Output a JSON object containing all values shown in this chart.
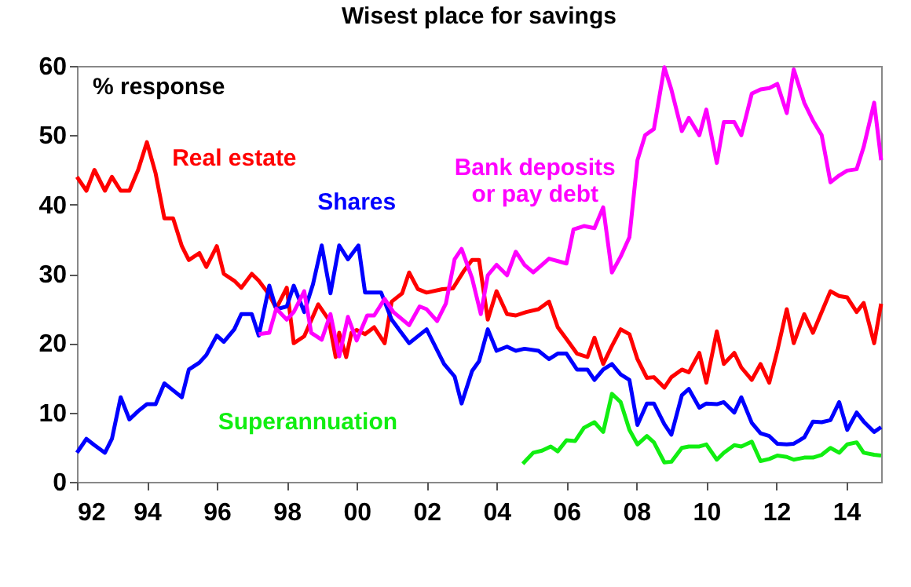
{
  "chart_data": {
    "type": "line",
    "title": "Wisest place for savings",
    "ylabel": "% response",
    "xlim": [
      1992,
      2015
    ],
    "xticks": [
      {
        "value": 1992,
        "label": "92"
      },
      {
        "value": 1994,
        "label": "94"
      },
      {
        "value": 1996,
        "label": "96"
      },
      {
        "value": 1998,
        "label": "98"
      },
      {
        "value": 2000,
        "label": "00"
      },
      {
        "value": 2002,
        "label": "02"
      },
      {
        "value": 2004,
        "label": "04"
      },
      {
        "value": 2006,
        "label": "06"
      },
      {
        "value": 2008,
        "label": "08"
      },
      {
        "value": 2010,
        "label": "10"
      },
      {
        "value": 2012,
        "label": "12"
      },
      {
        "value": 2014,
        "label": "14"
      }
    ],
    "ylim": [
      0,
      60
    ],
    "yticks": [
      0,
      10,
      20,
      30,
      40,
      50,
      60
    ],
    "grid": false,
    "legend": false,
    "series": [
      {
        "name": "Real estate",
        "color": "#ff0000",
        "x": [
          1992.0,
          1992.27,
          1992.5,
          1992.8,
          1993.0,
          1993.25,
          1993.5,
          1993.75,
          1994.0,
          1994.25,
          1994.5,
          1994.75,
          1995.0,
          1995.2,
          1995.5,
          1995.7,
          1996.0,
          1996.2,
          1996.5,
          1996.7,
          1997.0,
          1997.2,
          1997.5,
          1997.7,
          1998.0,
          1998.2,
          1998.5,
          1998.9,
          1999.2,
          1999.4,
          1999.5,
          1999.7,
          1999.85,
          2000.0,
          2000.24,
          2000.5,
          2000.8,
          2001.0,
          2001.3,
          2001.5,
          2001.75,
          2002.0,
          2002.45,
          2002.75,
          2003.05,
          2003.3,
          2003.5,
          2003.75,
          2004.0,
          2004.3,
          2004.55,
          2004.85,
          2005.2,
          2005.5,
          2005.75,
          2006.0,
          2006.3,
          2006.6,
          2006.8,
          2007.05,
          2007.3,
          2007.55,
          2007.8,
          2008.03,
          2008.3,
          2008.5,
          2008.8,
          2009.0,
          2009.3,
          2009.5,
          2009.8,
          2010.0,
          2010.3,
          2010.5,
          2010.8,
          2011.0,
          2011.3,
          2011.55,
          2011.8,
          2012.03,
          2012.3,
          2012.5,
          2012.8,
          2013.05,
          2013.3,
          2013.55,
          2013.8,
          2014.03,
          2014.3,
          2014.5,
          2014.8,
          2015.0
        ],
        "values": [
          44,
          42,
          45,
          42,
          44,
          42,
          42,
          45,
          49,
          44.5,
          38,
          38,
          34,
          32,
          33,
          31,
          34,
          30,
          29,
          28,
          30,
          29,
          27,
          25,
          28,
          20,
          21,
          25.6,
          23.4,
          18,
          21.5,
          18,
          21.5,
          21.9,
          21.3,
          22.3,
          20,
          26,
          27.2,
          30.2,
          27.8,
          27.3,
          27.8,
          27.9,
          30.3,
          32,
          32,
          23.4,
          27.5,
          24.2,
          24,
          24.5,
          24.9,
          26,
          22.3,
          20.6,
          18.5,
          18,
          20.8,
          17,
          19.6,
          22,
          21.3,
          17.7,
          15,
          15.1,
          13.6,
          15.1,
          16.2,
          15.8,
          18.6,
          14.3,
          21.7,
          17,
          18.6,
          16.5,
          14.7,
          17,
          14.3,
          18.9,
          24.9,
          20,
          24.2,
          21.5,
          24.5,
          27.5,
          26.8,
          26.6,
          24.5,
          25.8,
          20,
          25.7
        ]
      },
      {
        "name": "Shares",
        "color": "#0000ff",
        "x": [
          1992.0,
          1992.27,
          1992.5,
          1992.8,
          1993.0,
          1993.25,
          1993.5,
          1993.75,
          1994.0,
          1994.25,
          1994.5,
          1994.75,
          1995.0,
          1995.2,
          1995.5,
          1995.7,
          1996.0,
          1996.2,
          1996.5,
          1996.7,
          1997.0,
          1997.2,
          1997.5,
          1997.7,
          1998.0,
          1998.2,
          1998.5,
          1998.75,
          1999.0,
          1999.25,
          1999.5,
          1999.75,
          2000.05,
          2000.24,
          2000.7,
          2001.0,
          2001.5,
          2002.0,
          2002.5,
          2002.8,
          2003.0,
          2003.3,
          2003.5,
          2003.75,
          2004.0,
          2004.3,
          2004.55,
          2004.8,
          2005.2,
          2005.5,
          2005.75,
          2006.0,
          2006.3,
          2006.6,
          2006.8,
          2007.05,
          2007.3,
          2007.55,
          2007.8,
          2008.03,
          2008.3,
          2008.5,
          2008.8,
          2009.0,
          2009.3,
          2009.5,
          2009.8,
          2010.0,
          2010.3,
          2010.5,
          2010.8,
          2011.0,
          2011.3,
          2011.55,
          2011.8,
          2012.03,
          2012.3,
          2012.5,
          2012.8,
          2013.05,
          2013.3,
          2013.55,
          2013.8,
          2014.03,
          2014.3,
          2014.5,
          2014.8,
          2015.0
        ],
        "values": [
          4.2,
          6.2,
          5.3,
          4.2,
          6.2,
          12.2,
          9,
          10.2,
          11.2,
          11.2,
          14.2,
          13.2,
          12.2,
          16.2,
          17.2,
          18.3,
          21.1,
          20.2,
          22,
          24.2,
          24.2,
          21.1,
          28.3,
          24.9,
          25.3,
          28.3,
          24.5,
          28.5,
          34.1,
          27.2,
          34.1,
          32.1,
          34.1,
          27.3,
          27.3,
          23.4,
          20,
          22,
          17,
          15.2,
          11.3,
          16,
          17.4,
          22,
          18.9,
          19.5,
          18.9,
          19.2,
          18.9,
          17.7,
          18.5,
          18.5,
          16.2,
          16.2,
          14.7,
          16.2,
          17,
          15.5,
          14.7,
          8.2,
          11.3,
          11.3,
          8.3,
          6.8,
          12.5,
          13.4,
          10.7,
          11.3,
          11.2,
          11.5,
          10,
          12.2,
          8.5,
          7,
          6.6,
          5.5,
          5.4,
          5.5,
          6.4,
          8.7,
          8.6,
          8.9,
          11.5,
          7.5,
          10,
          8.7,
          7.2,
          7.9
        ]
      },
      {
        "name": "Bank deposits or pay debt",
        "color": "#ff00ff",
        "x": [
          1997.2,
          1997.5,
          1997.7,
          1998.0,
          1998.2,
          1998.5,
          1998.7,
          1999.0,
          1999.25,
          1999.5,
          1999.75,
          2000.0,
          2000.3,
          2000.5,
          2000.8,
          2001.05,
          2001.5,
          2001.8,
          2002.0,
          2002.3,
          2002.55,
          2002.8,
          2003.0,
          2003.3,
          2003.55,
          2003.75,
          2004.0,
          2004.3,
          2004.55,
          2004.8,
          2005.05,
          2005.25,
          2005.5,
          2006.0,
          2006.2,
          2006.5,
          2006.8,
          2007.05,
          2007.3,
          2007.55,
          2007.8,
          2008.03,
          2008.25,
          2008.5,
          2008.8,
          2009.0,
          2009.3,
          2009.5,
          2009.8,
          2010.0,
          2010.3,
          2010.5,
          2010.8,
          2011.0,
          2011.3,
          2011.55,
          2011.8,
          2012.03,
          2012.3,
          2012.5,
          2012.8,
          2013.05,
          2013.3,
          2013.55,
          2013.8,
          2014.03,
          2014.3,
          2014.5,
          2014.8,
          2015.0
        ],
        "values": [
          21.3,
          21.5,
          25,
          23.4,
          24.5,
          27.5,
          21.5,
          20.5,
          24.2,
          18.1,
          23.8,
          20.4,
          24,
          24,
          26.4,
          24.5,
          22.6,
          25.3,
          24.9,
          23.2,
          25.7,
          32.1,
          33.6,
          29.4,
          24.2,
          29.8,
          31.3,
          29.8,
          33.2,
          31.3,
          30.2,
          31.1,
          32.2,
          31.5,
          36.4,
          36.9,
          36.6,
          39.6,
          30.2,
          32.5,
          35.3,
          46.4,
          50,
          50.9,
          59.8,
          56.6,
          50.6,
          52.5,
          50,
          53.7,
          46,
          51.9,
          51.9,
          50,
          56,
          56.6,
          56.8,
          57.4,
          53.2,
          59.5,
          54.7,
          52.1,
          50,
          43.2,
          44.2,
          44.9,
          45.1,
          48.3,
          54.7,
          46.4
        ]
      },
      {
        "name": "Superannuation",
        "color": "#11ee11",
        "x": [
          2004.75,
          2005.05,
          2005.3,
          2005.55,
          2005.75,
          2006.0,
          2006.25,
          2006.5,
          2006.8,
          2007.05,
          2007.3,
          2007.55,
          2007.8,
          2008.03,
          2008.3,
          2008.5,
          2008.8,
          2009.0,
          2009.3,
          2009.5,
          2009.8,
          2010.0,
          2010.3,
          2010.5,
          2010.8,
          2011.0,
          2011.3,
          2011.55,
          2011.8,
          2012.03,
          2012.3,
          2012.5,
          2012.8,
          2013.05,
          2013.3,
          2013.55,
          2013.8,
          2014.03,
          2014.3,
          2014.5,
          2014.8,
          2015.0
        ],
        "values": [
          2.6,
          4.2,
          4.5,
          5.1,
          4.4,
          6,
          5.9,
          7.8,
          8.6,
          7.2,
          12.7,
          11.5,
          7.5,
          5.4,
          6.6,
          5.7,
          2.8,
          2.9,
          4.9,
          5.1,
          5.1,
          5.4,
          3.2,
          4.2,
          5.3,
          5.1,
          5.8,
          3,
          3.3,
          3.8,
          3.6,
          3.2,
          3.5,
          3.5,
          3.9,
          4.9,
          4.2,
          5.4,
          5.7,
          4.2,
          3.9,
          3.8
        ]
      }
    ]
  }
}
